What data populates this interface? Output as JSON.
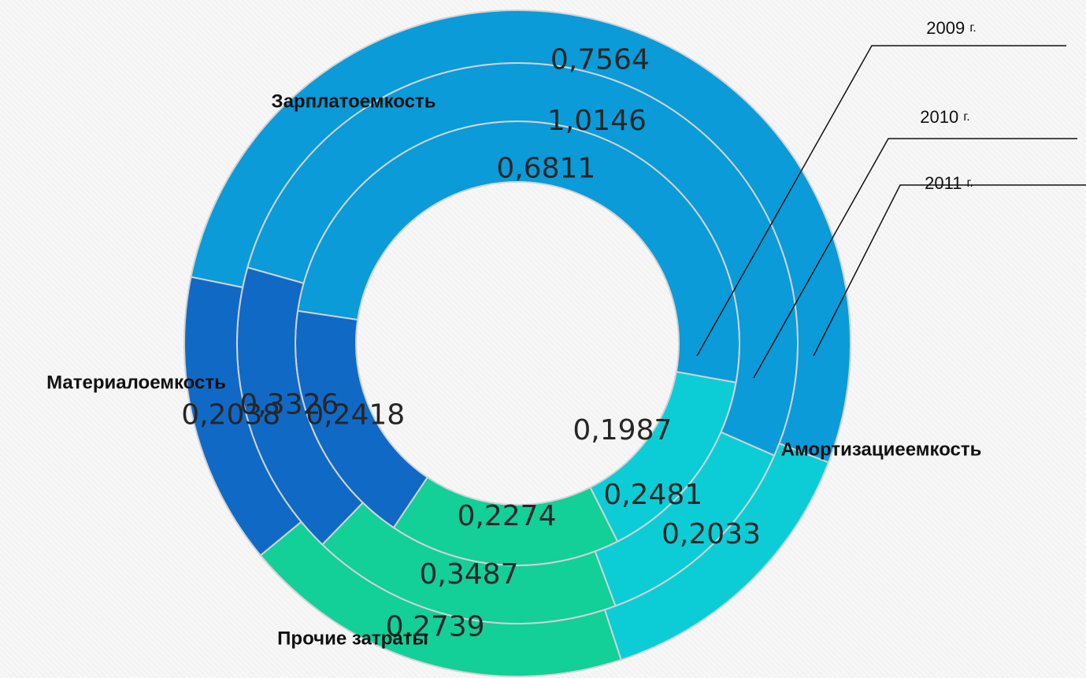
{
  "chart_data": {
    "type": "doughnut",
    "categories": [
      "Зарплатоемкость",
      "Амортизациеемкость",
      "Прочие затраты",
      "Материалоемкость"
    ],
    "series": [
      {
        "name": "2011",
        "year_label": "2011",
        "suffix": "г.",
        "values": [
          "0,6811",
          "0,1987",
          "0,2274",
          "0,2418"
        ]
      },
      {
        "name": "2010",
        "year_label": "2010",
        "suffix": "г.",
        "values": [
          "1,0146",
          "0,2481",
          "0,3487",
          "0,3326"
        ]
      },
      {
        "name": "2009",
        "year_label": "2009",
        "suffix": "г.",
        "values": [
          "0,7564",
          "0,2033",
          "0,2739",
          "0,2038"
        ]
      }
    ],
    "colors": {
      "Зарплатоемкость": "#0a9bd8",
      "Амортизациеемкость": "#0ccdd6",
      "Прочие затраты": "#13cf98",
      "Материалоемкость": "#1169c6"
    },
    "ring_order": "2011 inner, 2010 middle, 2009 outer",
    "legend": "leader lines top-right",
    "title": ""
  }
}
